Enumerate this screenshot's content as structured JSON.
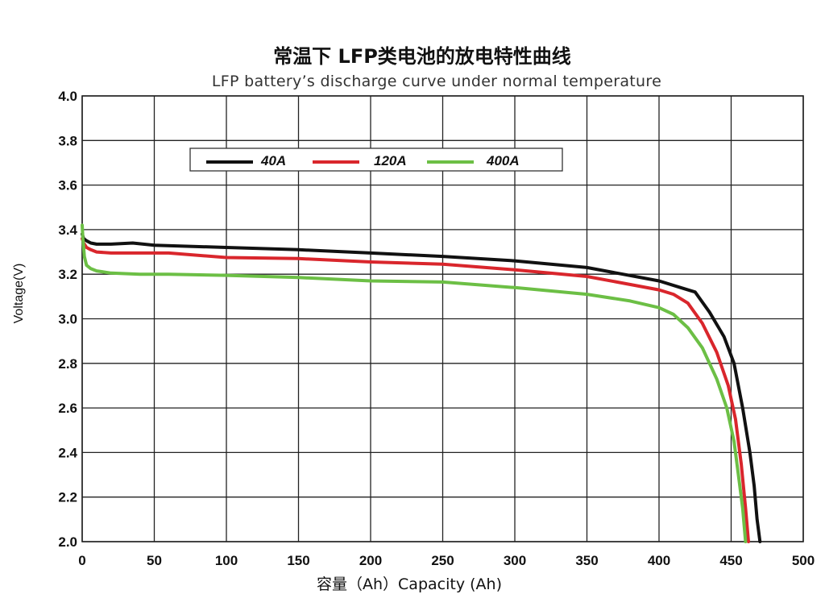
{
  "chart_data": {
    "type": "line",
    "title": "常温下 LFP类电池的放电特性曲线",
    "subtitle": "LFP battery’s discharge curve under normal temperature",
    "xlabel": "容量（Ah）Capacity (Ah)",
    "ylabel": "Voltage(V)",
    "xlim": [
      0,
      500
    ],
    "ylim": [
      2.0,
      4.0
    ],
    "xticks": [
      "0",
      "50",
      "100",
      "150",
      "200",
      "250",
      "300",
      "350",
      "400",
      "450",
      "500"
    ],
    "yticks": [
      "2.0",
      "2.2",
      "2.4",
      "2.6",
      "2.8",
      "3.0",
      "3.2",
      "3.4",
      "3.6",
      "3.8",
      "4.0"
    ],
    "grid": true,
    "legend_position": "top-left",
    "series": [
      {
        "name": "40A",
        "color": "#111111",
        "x": [
          0,
          1,
          3,
          6,
          10,
          20,
          35,
          50,
          100,
          150,
          200,
          250,
          300,
          350,
          400,
          415,
          425,
          435,
          445,
          452,
          458,
          463,
          466,
          468,
          470
        ],
        "y": [
          3.38,
          3.36,
          3.35,
          3.34,
          3.335,
          3.335,
          3.34,
          3.33,
          3.32,
          3.31,
          3.295,
          3.28,
          3.26,
          3.23,
          3.17,
          3.14,
          3.12,
          3.03,
          2.92,
          2.8,
          2.6,
          2.4,
          2.25,
          2.1,
          2.0
        ]
      },
      {
        "name": "120A",
        "color": "#d9262c",
        "x": [
          0,
          1,
          3,
          6,
          10,
          20,
          35,
          60,
          100,
          150,
          200,
          250,
          300,
          350,
          400,
          410,
          420,
          430,
          440,
          448,
          453,
          457,
          460,
          462
        ],
        "y": [
          3.36,
          3.34,
          3.32,
          3.31,
          3.3,
          3.295,
          3.295,
          3.295,
          3.275,
          3.27,
          3.255,
          3.245,
          3.22,
          3.19,
          3.13,
          3.11,
          3.07,
          2.98,
          2.85,
          2.7,
          2.55,
          2.35,
          2.15,
          2.0
        ]
      },
      {
        "name": "400A",
        "color": "#6cbf45",
        "x": [
          0,
          0.5,
          1.5,
          3,
          6,
          10,
          20,
          40,
          60,
          100,
          150,
          200,
          250,
          300,
          350,
          380,
          400,
          410,
          420,
          430,
          440,
          447,
          452,
          455,
          458,
          460
        ],
        "y": [
          3.42,
          3.36,
          3.28,
          3.24,
          3.225,
          3.215,
          3.205,
          3.2,
          3.2,
          3.195,
          3.185,
          3.17,
          3.165,
          3.14,
          3.11,
          3.08,
          3.05,
          3.02,
          2.96,
          2.87,
          2.73,
          2.6,
          2.45,
          2.3,
          2.15,
          2.0
        ]
      }
    ]
  }
}
